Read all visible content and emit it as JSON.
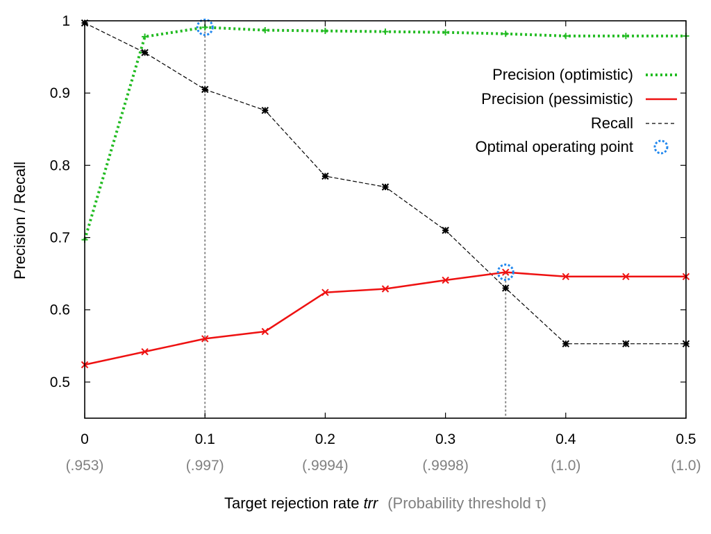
{
  "chart_data": {
    "type": "line",
    "xlabel": "Target rejection rate",
    "xlabel_var": "trr",
    "xlabel_sub": "(Probability threshold τ)",
    "ylabel": "Precision / Recall",
    "xlim": [
      0,
      0.5
    ],
    "ylim": [
      0.45,
      1.0
    ],
    "x_ticks": [
      0,
      0.1,
      0.2,
      0.3,
      0.4,
      0.5
    ],
    "x_tick_labels": [
      "0",
      "0.1",
      "0.2",
      "0.3",
      "0.4",
      "0.5"
    ],
    "x_sub_tick_labels": [
      "(.953)",
      "(.997)",
      "(.9994)",
      "(.9998)",
      "(1.0)",
      "(1.0)"
    ],
    "y_ticks": [
      0.5,
      0.6,
      0.7,
      0.8,
      0.9,
      1.0
    ],
    "y_tick_labels": [
      "0.5",
      "0.6",
      "0.7",
      "0.8",
      "0.9",
      "1"
    ],
    "x": [
      0,
      0.05,
      0.1,
      0.15,
      0.2,
      0.25,
      0.3,
      0.35,
      0.4,
      0.45,
      0.5
    ],
    "series": [
      {
        "name": "Precision (optimistic)",
        "color": "#22bb22",
        "style": "dotted",
        "marker": "plus",
        "values": [
          0.697,
          0.978,
          0.991,
          0.987,
          0.986,
          0.985,
          0.984,
          0.982,
          0.979,
          0.979,
          0.979
        ]
      },
      {
        "name": "Precision (pessimistic)",
        "color": "#ee1111",
        "style": "solid",
        "marker": "cross",
        "values": [
          0.524,
          0.542,
          0.56,
          0.57,
          0.624,
          0.629,
          0.641,
          0.652,
          0.646,
          0.646,
          0.646
        ]
      },
      {
        "name": "Recall",
        "color": "#000000",
        "style": "dashed",
        "marker": "star",
        "values": [
          0.997,
          0.956,
          0.905,
          0.876,
          0.785,
          0.77,
          0.71,
          0.63,
          0.553,
          0.553,
          0.553
        ]
      }
    ],
    "optimal_points": [
      {
        "x": 0.1,
        "y": 0.991
      },
      {
        "x": 0.35,
        "y": 0.652
      }
    ],
    "optimal_label": "Optimal operating point",
    "optimal_color": "#2288ee",
    "legend_position": "top-right",
    "grid": false
  }
}
